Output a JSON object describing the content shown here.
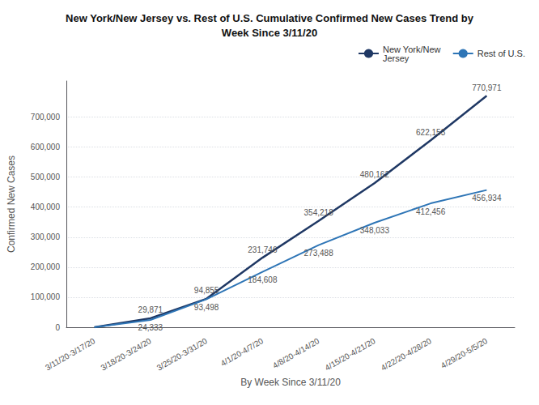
{
  "chart_data": {
    "type": "line",
    "title": "New York/New Jersey vs. Rest of U.S. Cumulative Confirmed New Cases Trend by\nWeek Since 3/11/20",
    "xlabel": "By Week Since 3/11/20",
    "ylabel": "Confirmed New Cases",
    "categories": [
      "3/11/20-3/17/20",
      "3/18/20-3/24/20",
      "3/25/20-3/31/20",
      "4/1/20-4/7/20",
      "4/8/20-4/14/20",
      "4/15/20-4/21/20",
      "4/22/20-4/28/20",
      "4/29/20-5/5/20"
    ],
    "series": [
      {
        "name": "New York/New\nJersey",
        "color": "#1f3864",
        "values": [
          0,
          29871,
          94855,
          231746,
          354218,
          480162,
          622153,
          770971
        ],
        "value_labels": [
          null,
          "29,871",
          "94,855",
          "231,746",
          "354,218",
          "480,162",
          "622,153",
          "770,971"
        ]
      },
      {
        "name": "Rest of U.S.",
        "color": "#2e75b6",
        "values": [
          0,
          24333,
          93498,
          184608,
          273488,
          348033,
          412456,
          456934
        ],
        "value_labels": [
          null,
          "24,333",
          "93,498",
          "184,608",
          "273,488",
          "348,033",
          "412,456",
          "456,934"
        ]
      }
    ],
    "ylim": [
      0,
      820000
    ],
    "yticks": [
      0,
      {
        "value": 100000,
        "label": "100,000"
      },
      {
        "value": 200000,
        "label": "200,000"
      },
      {
        "value": 300000,
        "label": "300,000"
      },
      {
        "value": 400000,
        "label": "400,000"
      },
      {
        "value": 500000,
        "label": "500,000"
      },
      {
        "value": 600000,
        "label": "600,000"
      },
      {
        "value": 700000,
        "label": "700,000"
      }
    ],
    "grid": true,
    "legend": "upper right",
    "data_labels": true
  }
}
